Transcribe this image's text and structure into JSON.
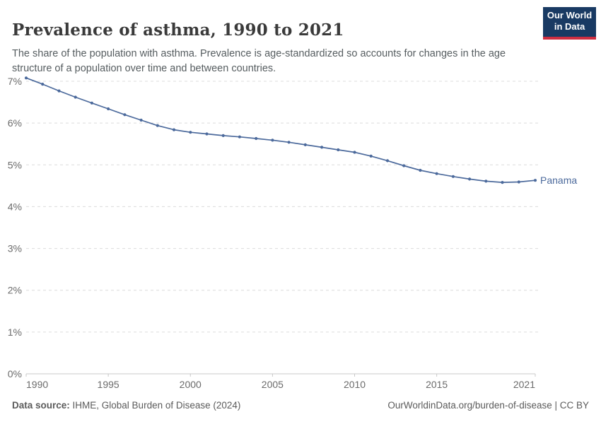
{
  "header": {
    "title": "Prevalence of asthma, 1990 to 2021",
    "subtitle": "The share of the population with asthma. Prevalence is age-standardized so accounts for changes in the age structure of a population over time and between countries.",
    "logo": {
      "line1": "Our World",
      "line2": "in Data"
    }
  },
  "chart_data": {
    "type": "line",
    "title": "Prevalence of asthma, 1990 to 2021",
    "x": [
      1990,
      1991,
      1992,
      1993,
      1994,
      1995,
      1996,
      1997,
      1998,
      1999,
      2000,
      2001,
      2002,
      2003,
      2004,
      2005,
      2006,
      2007,
      2008,
      2009,
      2010,
      2011,
      2012,
      2013,
      2014,
      2015,
      2016,
      2017,
      2018,
      2019,
      2020,
      2021
    ],
    "series": [
      {
        "name": "Panama",
        "values": [
          7.08,
          6.93,
          6.77,
          6.62,
          6.48,
          6.34,
          6.2,
          6.07,
          5.94,
          5.84,
          5.78,
          5.74,
          5.7,
          5.67,
          5.63,
          5.59,
          5.54,
          5.48,
          5.42,
          5.36,
          5.3,
          5.21,
          5.1,
          4.98,
          4.87,
          4.79,
          4.72,
          4.66,
          4.61,
          4.58,
          4.59,
          4.63
        ]
      }
    ],
    "xlabel": "",
    "ylabel": "",
    "xlim": [
      1990,
      2021
    ],
    "ylim": [
      0,
      7
    ],
    "yticks": [
      0,
      1,
      2,
      3,
      4,
      5,
      6,
      7
    ],
    "ytick_suffix": "%",
    "xticks": [
      1990,
      1995,
      2000,
      2005,
      2010,
      2015,
      2021
    ],
    "grid": "horizontal-dashed",
    "legend_position": "end-of-line-label",
    "markers": true
  },
  "footer": {
    "data_source_label": "Data source:",
    "data_source": " IHME, Global Burden of Disease (2024)",
    "citation": "OurWorldinData.org/burden-of-disease | CC BY"
  },
  "colors": {
    "line": "#4C6A9C",
    "grid": "#dcdcdc",
    "axis": "#c8c8c8",
    "tick_label": "#6b6b6b",
    "logo_bg": "#193a63",
    "logo_stripe": "#cf2e41"
  }
}
